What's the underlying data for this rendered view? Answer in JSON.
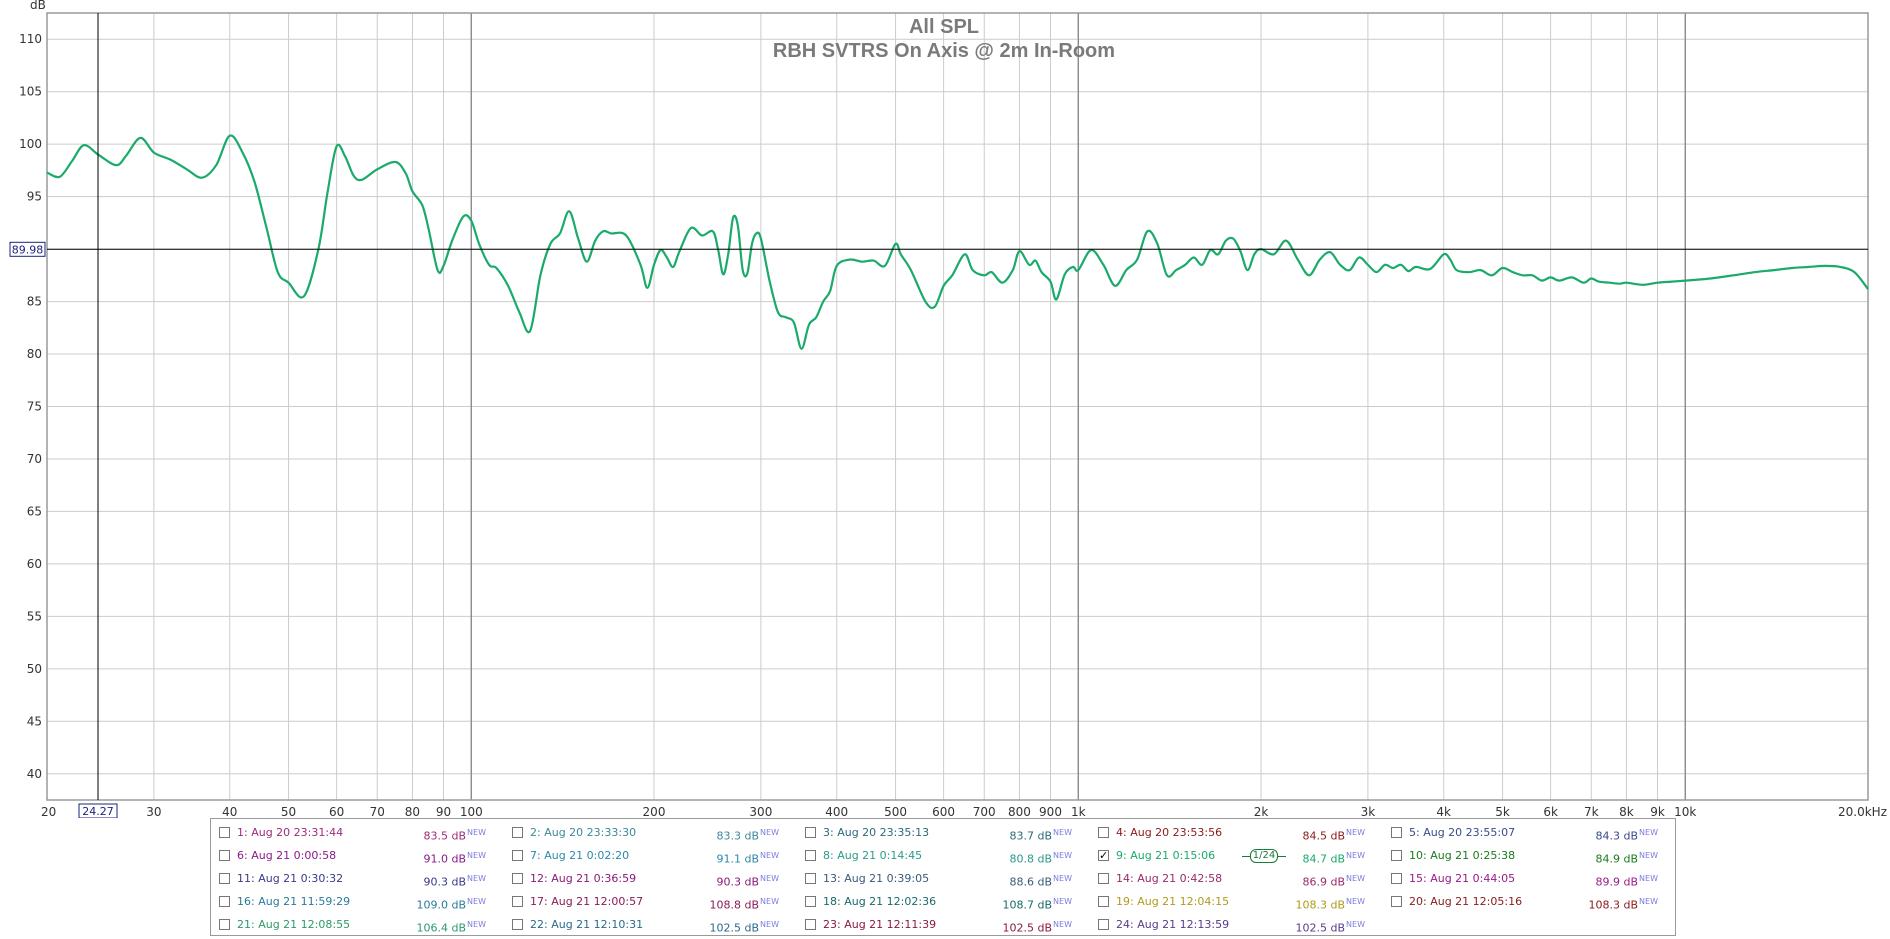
{
  "chart_data": {
    "type": "line",
    "title": "All SPL",
    "subtitle": "RBH SVTRS On Axis @ 2m In-Room",
    "ylabel": "dB",
    "xunit": "kHz",
    "xscale": "log",
    "xlim": [
      20,
      20000
    ],
    "ylim": [
      37.5,
      112.5
    ],
    "grid": true,
    "y_ticks": [
      110,
      105,
      100,
      95,
      90,
      85,
      80,
      75,
      70,
      65,
      60,
      55,
      50,
      45,
      40
    ],
    "x_ticks": [
      {
        "v": 20,
        "label": "20"
      },
      {
        "v": 30,
        "label": "30"
      },
      {
        "v": 40,
        "label": "40"
      },
      {
        "v": 50,
        "label": "50"
      },
      {
        "v": 60,
        "label": "60"
      },
      {
        "v": 70,
        "label": "70"
      },
      {
        "v": 80,
        "label": "80"
      },
      {
        "v": 90,
        "label": "90"
      },
      {
        "v": 100,
        "label": "100"
      },
      {
        "v": 200,
        "label": "200"
      },
      {
        "v": 300,
        "label": "300"
      },
      {
        "v": 400,
        "label": "400"
      },
      {
        "v": 500,
        "label": "500"
      },
      {
        "v": 600,
        "label": "600"
      },
      {
        "v": 700,
        "label": "700"
      },
      {
        "v": 800,
        "label": "800"
      },
      {
        "v": 900,
        "label": "900"
      },
      {
        "v": 1000,
        "label": "1k"
      },
      {
        "v": 2000,
        "label": "2k"
      },
      {
        "v": 3000,
        "label": "3k"
      },
      {
        "v": 4000,
        "label": "4k"
      },
      {
        "v": 5000,
        "label": "5k"
      },
      {
        "v": 6000,
        "label": "6k"
      },
      {
        "v": 7000,
        "label": "7k"
      },
      {
        "v": 8000,
        "label": "8k"
      },
      {
        "v": 9000,
        "label": "9k"
      },
      {
        "v": 10000,
        "label": "10k"
      },
      {
        "v": 20000,
        "label": "20.0kHz"
      }
    ],
    "cursor": {
      "x": 24.27,
      "x_label": "24.27",
      "y": 89.98,
      "y_label": "89.98"
    },
    "series": [
      {
        "color": "#1aaa6a",
        "points": [
          [
            20,
            97.3
          ],
          [
            21,
            96.9
          ],
          [
            22,
            98.4
          ],
          [
            23,
            99.9
          ],
          [
            24.3,
            99.0
          ],
          [
            26,
            98.0
          ],
          [
            27,
            98.9
          ],
          [
            28.5,
            100.6
          ],
          [
            30,
            99.2
          ],
          [
            32,
            98.5
          ],
          [
            34,
            97.6
          ],
          [
            36,
            96.8
          ],
          [
            38,
            98.0
          ],
          [
            40,
            100.8
          ],
          [
            42,
            99.2
          ],
          [
            44,
            96.3
          ],
          [
            46,
            92.0
          ],
          [
            48,
            87.8
          ],
          [
            50,
            86.8
          ],
          [
            53,
            85.5
          ],
          [
            56,
            90.0
          ],
          [
            58,
            95.5
          ],
          [
            60,
            99.8
          ],
          [
            62,
            98.8
          ],
          [
            64,
            97.0
          ],
          [
            66,
            96.6
          ],
          [
            70,
            97.6
          ],
          [
            75,
            98.3
          ],
          [
            78,
            97.2
          ],
          [
            80,
            95.5
          ],
          [
            83,
            94.2
          ],
          [
            85,
            92.0
          ],
          [
            88,
            88.0
          ],
          [
            90,
            88.4
          ],
          [
            93,
            90.8
          ],
          [
            97,
            93.1
          ],
          [
            100,
            92.7
          ],
          [
            103,
            90.5
          ],
          [
            107,
            88.5
          ],
          [
            110,
            88.2
          ],
          [
            115,
            86.5
          ],
          [
            120,
            84.0
          ],
          [
            125,
            82.2
          ],
          [
            130,
            87.5
          ],
          [
            135,
            90.5
          ],
          [
            140,
            91.5
          ],
          [
            145,
            93.6
          ],
          [
            150,
            91.0
          ],
          [
            155,
            88.8
          ],
          [
            160,
            90.8
          ],
          [
            165,
            91.7
          ],
          [
            170,
            91.5
          ],
          [
            180,
            91.3
          ],
          [
            190,
            88.5
          ],
          [
            195,
            86.3
          ],
          [
            200,
            88.5
          ],
          [
            205,
            89.9
          ],
          [
            210,
            89.2
          ],
          [
            215,
            88.3
          ],
          [
            220,
            89.7
          ],
          [
            230,
            92.0
          ],
          [
            240,
            91.3
          ],
          [
            250,
            91.7
          ],
          [
            255,
            90.0
          ],
          [
            260,
            87.6
          ],
          [
            265,
            89.5
          ],
          [
            270,
            93.0
          ],
          [
            275,
            92.2
          ],
          [
            280,
            88.0
          ],
          [
            285,
            87.7
          ],
          [
            290,
            90.5
          ],
          [
            295,
            91.5
          ],
          [
            300,
            91.0
          ],
          [
            310,
            87.0
          ],
          [
            320,
            84.0
          ],
          [
            330,
            83.5
          ],
          [
            340,
            83.0
          ],
          [
            350,
            80.5
          ],
          [
            360,
            82.8
          ],
          [
            370,
            83.5
          ],
          [
            380,
            85.0
          ],
          [
            390,
            86.0
          ],
          [
            400,
            88.4
          ],
          [
            420,
            89.0
          ],
          [
            440,
            88.8
          ],
          [
            460,
            88.9
          ],
          [
            480,
            88.4
          ],
          [
            500,
            90.5
          ],
          [
            510,
            89.5
          ],
          [
            530,
            88.0
          ],
          [
            560,
            85.0
          ],
          [
            580,
            84.5
          ],
          [
            600,
            86.5
          ],
          [
            620,
            87.5
          ],
          [
            650,
            89.5
          ],
          [
            670,
            88.0
          ],
          [
            700,
            87.5
          ],
          [
            720,
            87.8
          ],
          [
            750,
            86.8
          ],
          [
            780,
            88.0
          ],
          [
            800,
            89.8
          ],
          [
            830,
            88.5
          ],
          [
            850,
            88.9
          ],
          [
            870,
            87.8
          ],
          [
            900,
            86.9
          ],
          [
            920,
            85.2
          ],
          [
            950,
            87.6
          ],
          [
            980,
            88.3
          ],
          [
            1000,
            88.0
          ],
          [
            1050,
            89.9
          ],
          [
            1100,
            88.5
          ],
          [
            1150,
            86.5
          ],
          [
            1200,
            88.0
          ],
          [
            1250,
            89.0
          ],
          [
            1300,
            91.7
          ],
          [
            1350,
            90.5
          ],
          [
            1400,
            87.5
          ],
          [
            1450,
            88.0
          ],
          [
            1500,
            88.5
          ],
          [
            1550,
            89.2
          ],
          [
            1600,
            88.5
          ],
          [
            1650,
            89.9
          ],
          [
            1700,
            89.5
          ],
          [
            1750,
            90.8
          ],
          [
            1800,
            91.0
          ],
          [
            1850,
            89.8
          ],
          [
            1900,
            88.0
          ],
          [
            1950,
            89.5
          ],
          [
            2000,
            90.0
          ],
          [
            2100,
            89.5
          ],
          [
            2200,
            90.8
          ],
          [
            2300,
            89.0
          ],
          [
            2400,
            87.5
          ],
          [
            2500,
            89.0
          ],
          [
            2600,
            89.7
          ],
          [
            2700,
            88.5
          ],
          [
            2800,
            88.0
          ],
          [
            2900,
            89.2
          ],
          [
            3000,
            88.5
          ],
          [
            3100,
            87.8
          ],
          [
            3200,
            88.5
          ],
          [
            3300,
            88.2
          ],
          [
            3400,
            88.5
          ],
          [
            3500,
            87.9
          ],
          [
            3600,
            88.3
          ],
          [
            3800,
            88.1
          ],
          [
            4000,
            89.5
          ],
          [
            4100,
            89.0
          ],
          [
            4200,
            88.0
          ],
          [
            4400,
            87.8
          ],
          [
            4600,
            88.0
          ],
          [
            4800,
            87.5
          ],
          [
            5000,
            88.2
          ],
          [
            5200,
            87.8
          ],
          [
            5400,
            87.5
          ],
          [
            5600,
            87.5
          ],
          [
            5800,
            87.0
          ],
          [
            6000,
            87.3
          ],
          [
            6200,
            87.0
          ],
          [
            6500,
            87.3
          ],
          [
            6800,
            86.8
          ],
          [
            7000,
            87.2
          ],
          [
            7200,
            86.9
          ],
          [
            7500,
            86.8
          ],
          [
            7800,
            86.7
          ],
          [
            8000,
            86.8
          ],
          [
            8500,
            86.6
          ],
          [
            9000,
            86.8
          ],
          [
            9500,
            86.9
          ],
          [
            10000,
            87.0
          ],
          [
            11000,
            87.2
          ],
          [
            12000,
            87.5
          ],
          [
            13000,
            87.8
          ],
          [
            14000,
            88.0
          ],
          [
            15000,
            88.2
          ],
          [
            16000,
            88.3
          ],
          [
            17000,
            88.4
          ],
          [
            18000,
            88.3
          ],
          [
            19000,
            87.8
          ],
          [
            20000,
            86.2
          ]
        ]
      }
    ]
  },
  "legend": {
    "items": [
      {
        "name": "1: Aug 20 23:31:44",
        "value": "83.5 dB",
        "new": "NEW",
        "color": "#a02a7a",
        "checked": false
      },
      {
        "name": "2: Aug 20 23:33:30",
        "value": "83.3 dB",
        "new": "NEW",
        "color": "#3a8a9a",
        "checked": false
      },
      {
        "name": "3: Aug 20 23:35:13",
        "value": "83.7 dB",
        "new": "NEW",
        "color": "#2a6a7a",
        "checked": false
      },
      {
        "name": "4: Aug 20 23:53:56",
        "value": "84.5 dB",
        "new": "NEW",
        "color": "#8a1a1a",
        "checked": false
      },
      {
        "name": "5: Aug 20 23:55:07",
        "value": "84.3 dB",
        "new": "NEW",
        "color": "#3a4a8a",
        "checked": false
      },
      {
        "name": "6: Aug 21 0:00:58",
        "value": "91.0 dB",
        "new": "NEW",
        "color": "#8a1a8a",
        "checked": false
      },
      {
        "name": "7: Aug 21 0:02:20",
        "value": "91.1 dB",
        "new": "NEW",
        "color": "#2a8aaa",
        "checked": false
      },
      {
        "name": "8: Aug 21 0:14:45",
        "value": "80.8 dB",
        "new": "NEW",
        "color": "#2a9a8a",
        "checked": false
      },
      {
        "name": "9: Aug 21 0:15:06",
        "value": "84.7 dB",
        "new": "NEW",
        "color": "#1aaa6a",
        "checked": true,
        "mark": "✓",
        "smoothing": "1/24"
      },
      {
        "name": "10: Aug 21 0:25:38",
        "value": "84.9 dB",
        "new": "NEW",
        "color": "#1a7a1a",
        "checked": false
      },
      {
        "name": "11: Aug 21 0:30:32",
        "value": "90.3 dB",
        "new": "NEW",
        "color": "#3a3a8a",
        "checked": false
      },
      {
        "name": "12: Aug 21 0:36:59",
        "value": "90.3 dB",
        "new": "NEW",
        "color": "#8a1a7a",
        "checked": false
      },
      {
        "name": "13: Aug 21 0:39:05",
        "value": "88.6 dB",
        "new": "NEW",
        "color": "#3a5a7a",
        "checked": false
      },
      {
        "name": "14: Aug 21 0:42:58",
        "value": "86.9 dB",
        "new": "NEW",
        "color": "#9a2a6a",
        "checked": false
      },
      {
        "name": "15: Aug 21 0:44:05",
        "value": "89.9 dB",
        "new": "NEW",
        "color": "#9a1a8a",
        "checked": false
      },
      {
        "name": "16: Aug 21 11:59:29",
        "value": "109.0 dB",
        "new": "NEW",
        "color": "#2a7a9a",
        "checked": false
      },
      {
        "name": "17: Aug 21 12:00:57",
        "value": "108.8 dB",
        "new": "NEW",
        "color": "#8a1a5a",
        "checked": false
      },
      {
        "name": "18: Aug 21 12:02:36",
        "value": "108.7 dB",
        "new": "NEW",
        "color": "#1a6a6a",
        "checked": false
      },
      {
        "name": "19: Aug 21 12:04:15",
        "value": "108.3 dB",
        "new": "NEW",
        "color": "#b09a1a",
        "checked": false
      },
      {
        "name": "20: Aug 21 12:05:16",
        "value": "108.3 dB",
        "new": "NEW",
        "color": "#8a1a1a",
        "checked": false
      },
      {
        "name": "21: Aug 21 12:08:55",
        "value": "106.4 dB",
        "new": "NEW",
        "color": "#2a9a6a",
        "checked": false
      },
      {
        "name": "22: Aug 21 12:10:31",
        "value": "102.5 dB",
        "new": "NEW",
        "color": "#2a6a8a",
        "checked": false
      },
      {
        "name": "23: Aug 21 12:11:39",
        "value": "102.5 dB",
        "new": "NEW",
        "color": "#8a1a3a",
        "checked": false
      },
      {
        "name": "24: Aug 21 12:13:59",
        "value": "102.5 dB",
        "new": "NEW",
        "color": "#5a3a8a",
        "checked": false
      }
    ]
  }
}
